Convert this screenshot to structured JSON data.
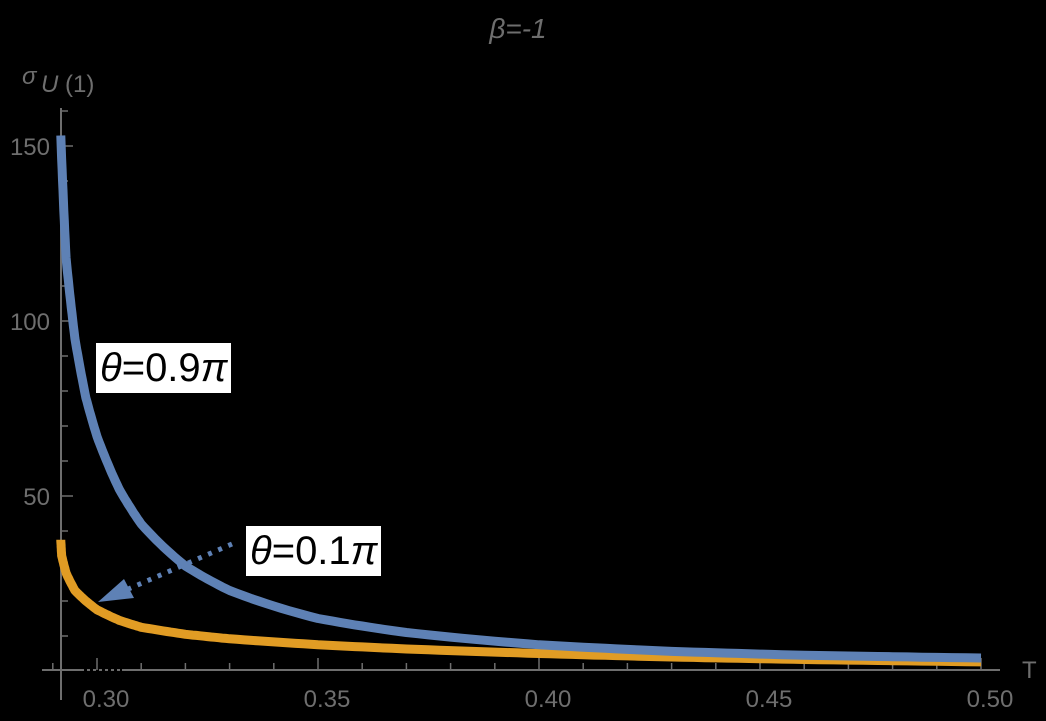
{
  "chart_data": {
    "type": "line",
    "title": "β=-1",
    "xlabel": "T",
    "ylabel": "σU (1)",
    "xlim": [
      0.2918,
      0.5
    ],
    "ylim": [
      0,
      160
    ],
    "x_ticks": [
      "0.30",
      "0.35",
      "0.40",
      "0.45",
      "0.50"
    ],
    "y_ticks": [
      "50",
      "100",
      "150"
    ],
    "grid": false,
    "legend": "none (inline annotations)",
    "series": [
      {
        "name": "θ=0.9π",
        "color": "#5e81b5",
        "x": [
          0.2918,
          0.293,
          0.295,
          0.2975,
          0.3,
          0.305,
          0.31,
          0.32,
          0.33,
          0.35,
          0.37,
          0.4,
          0.43,
          0.46,
          0.5
        ],
        "y": [
          153,
          118,
          95,
          78,
          67,
          52,
          42,
          30,
          23,
          15,
          11,
          7.5,
          5.6,
          4.5,
          3.7
        ]
      },
      {
        "name": "θ=0.1π",
        "color": "#e19c24",
        "x": [
          0.2918,
          0.292,
          0.293,
          0.295,
          0.2975,
          0.3,
          0.305,
          0.31,
          0.32,
          0.33,
          0.35,
          0.37,
          0.4,
          0.43,
          0.46,
          0.5
        ],
        "y": [
          37.5,
          33,
          28,
          23,
          20,
          17.5,
          14.5,
          12.5,
          10.5,
          9.2,
          7.5,
          6.3,
          5.0,
          4.0,
          3.3,
          2.6
        ]
      }
    ],
    "annotations": [
      {
        "text": "θ=0.9π",
        "target_series": "θ=0.9π"
      },
      {
        "text": "θ=0.1π",
        "target_series": "θ=0.1π",
        "arrow": "dotted blue arrow pointing to orange curve"
      }
    ]
  },
  "labels": {
    "title": "β=-1",
    "x_axis": "T",
    "y_axis_sigma": "σ",
    "y_axis_sub": "U (1)",
    "annotation_09_theta": "θ",
    "annotation_09_rest": "=0.9",
    "annotation_09_pi": "π",
    "annotation_01_theta": "θ",
    "annotation_01_rest": "=0.1",
    "annotation_01_pi": "π"
  }
}
